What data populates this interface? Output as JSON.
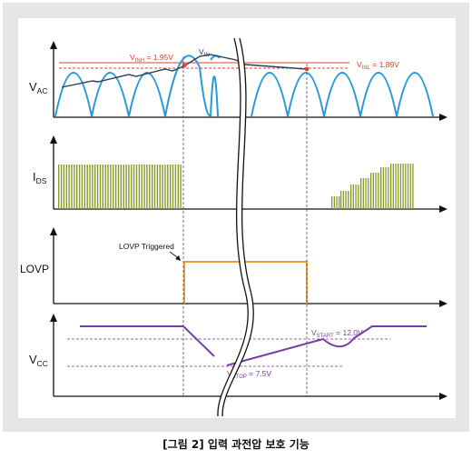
{
  "figure": {
    "caption": "[그림 2] 입력 과전압 보호 기능"
  },
  "panels": {
    "vac": {
      "label_main": "V",
      "label_sub": "AC"
    },
    "ids": {
      "label_main": "I",
      "label_sub": "DS"
    },
    "lovp": {
      "label_main": "LOVP"
    },
    "vcc": {
      "label_main": "V",
      "label_sub": "CC"
    }
  },
  "annotations": {
    "vinh": {
      "main": "V",
      "sub": "INH",
      "rest": " = 1.95V"
    },
    "vin": {
      "main": "V",
      "sub": "IN"
    },
    "vinl": {
      "main": "V",
      "sub": "INL",
      "rest": " = 1.89V"
    },
    "lovp_triggered": "LOVP Triggered",
    "vstart": {
      "main": "V",
      "sub": "START",
      "rest": " = 12.0V"
    },
    "vstop": {
      "main": "V",
      "sub": "STOP",
      "rest": " = 7.5V"
    }
  },
  "colors": {
    "frame_bg": "#e5e5e5",
    "panel_bg": "#ffffff",
    "ac_wave": "#2a9ad6",
    "envelope": "#2c3e5c",
    "threshold": "#e0452b",
    "ids_bars": "#8a9a2a",
    "lovp_signal": "#f59b2a",
    "vcc_signal": "#7a3ea1",
    "axis": "#111111"
  }
}
